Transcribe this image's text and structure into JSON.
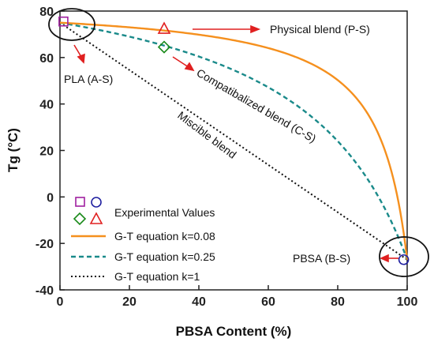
{
  "chart_data": {
    "type": "line",
    "xlabel": "PBSA Content (%)",
    "ylabel": "Tg (°C)",
    "xlim": [
      0,
      100
    ],
    "ylim": [
      -40,
      80
    ],
    "x_ticks": [
      "0",
      "20",
      "40",
      "60",
      "80",
      "100"
    ],
    "y_ticks": [
      "-40",
      "-20",
      "0",
      "20",
      "40",
      "60",
      "80"
    ],
    "series": [
      {
        "name": "G-T equation k=0.08",
        "color": "#f5901e",
        "style": "solid",
        "k": 0.08
      },
      {
        "name": "G-T equation k=0.25",
        "color": "#1a8a8a",
        "style": "dashed",
        "k": 0.25
      },
      {
        "name": "G-T equation k=1",
        "color": "#111111",
        "style": "dotted",
        "k": 1
      }
    ],
    "endpoints": {
      "tg_pla": 75,
      "tg_pbsa": -27
    },
    "experimental_points": [
      {
        "marker": "square",
        "color": "#a020a0",
        "x": 1,
        "y": 75.5
      },
      {
        "marker": "triangle",
        "color": "#e02020",
        "x": 30,
        "y": 72.5
      },
      {
        "marker": "diamond",
        "color": "#1a8a1a",
        "x": 30,
        "y": 64.5
      },
      {
        "marker": "circle",
        "color": "#2020a0",
        "x": 99,
        "y": -27
      }
    ],
    "legend": {
      "title": "Experimental Values",
      "placement": "lower-left"
    },
    "annotations": {
      "physical": "Physical blend (P-S)",
      "pla": "PLA (A-S)",
      "compat": "Compatibalized blend (C-S)",
      "miscible": "Miscible blend",
      "pbsa": "PBSA (B-S)"
    }
  }
}
